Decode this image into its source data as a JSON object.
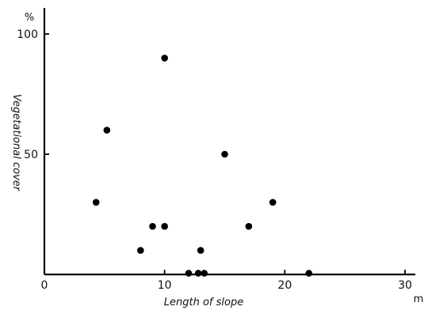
{
  "chart_data": {
    "type": "scatter",
    "title": "",
    "xlabel": "Length of slope",
    "ylabel": "Vegetational cover",
    "x_unit": "m",
    "y_unit": "%",
    "xlim": [
      0,
      30
    ],
    "ylim": [
      0,
      100
    ],
    "x_ticks": [
      0,
      10,
      20,
      30
    ],
    "y_ticks": [
      50,
      100
    ],
    "grid": false,
    "points": [
      {
        "x": 4.3,
        "y": 30
      },
      {
        "x": 5.2,
        "y": 60
      },
      {
        "x": 8.0,
        "y": 10
      },
      {
        "x": 9.0,
        "y": 20
      },
      {
        "x": 10.0,
        "y": 90
      },
      {
        "x": 10.0,
        "y": 20
      },
      {
        "x": 12.0,
        "y": 0.5
      },
      {
        "x": 12.8,
        "y": 0.5
      },
      {
        "x": 13.0,
        "y": 10
      },
      {
        "x": 13.3,
        "y": 0.5
      },
      {
        "x": 15.0,
        "y": 50
      },
      {
        "x": 17.0,
        "y": 20
      },
      {
        "x": 19.0,
        "y": 30
      },
      {
        "x": 22.0,
        "y": 0.5
      }
    ]
  }
}
